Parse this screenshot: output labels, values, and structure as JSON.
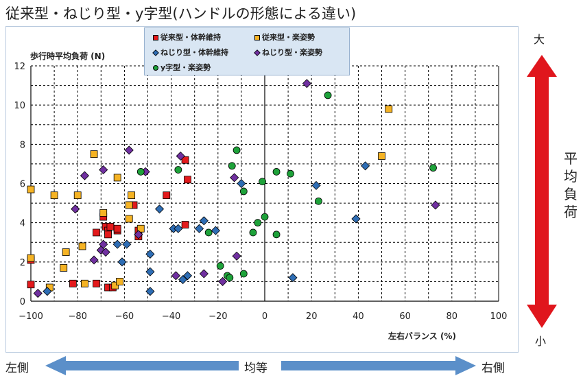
{
  "page_title": "従来型・ねじり型・y字型(ハンドルの形態による違い)",
  "right_scale": {
    "top": "大",
    "bottom": "小",
    "label": "平均負荷"
  },
  "bottom_scale": {
    "left": "左側",
    "middle": "均等",
    "right": "右側"
  },
  "colors": {
    "red": "#e31a1c",
    "orange": "#f5b324",
    "blue": "#2e6db4",
    "purple": "#7030a0",
    "green": "#1ea23a",
    "arrow_red": "#e0161d",
    "arrow_blue": "#5b8fc9"
  },
  "chart_data": {
    "type": "scatter",
    "ylabel": "歩行時平均負荷 (N)",
    "xlabel": "左右バランス (%)",
    "xlim": [
      -100,
      100
    ],
    "ylim": [
      0,
      12
    ],
    "xticks": [
      "−100",
      "−80",
      "−60",
      "−40",
      "−20",
      "0",
      "20",
      "40",
      "60",
      "80",
      "100"
    ],
    "yticks": [
      "0",
      "2",
      "4",
      "6",
      "8",
      "10",
      "12"
    ],
    "grid": true,
    "legend_position": "top-center",
    "series": [
      {
        "name": "従来型・体幹維持",
        "marker": "square",
        "color": "#e31a1c",
        "points": [
          [
            -100,
            2.1
          ],
          [
            -100,
            0.85
          ],
          [
            -82,
            0.9
          ],
          [
            -72,
            0.9
          ],
          [
            -72,
            3.5
          ],
          [
            -69,
            4.3
          ],
          [
            -68,
            3.8
          ],
          [
            -67,
            3.6
          ],
          [
            -67,
            3.4
          ],
          [
            -67,
            0.7
          ],
          [
            -66,
            3.8
          ],
          [
            -65,
            0.7
          ],
          [
            -63,
            3.6
          ],
          [
            -63,
            3.7
          ],
          [
            -56,
            4.9
          ],
          [
            -54,
            3.3
          ],
          [
            -54,
            3.6
          ],
          [
            -42,
            5.4
          ],
          [
            -34,
            3.9
          ],
          [
            -34,
            7.2
          ],
          [
            -33,
            6.2
          ]
        ]
      },
      {
        "name": "従来型・楽姿勢",
        "marker": "square",
        "color": "#f5b324",
        "points": [
          [
            -100,
            5.7
          ],
          [
            -100,
            2.2
          ],
          [
            -92,
            0.7
          ],
          [
            -90,
            5.4
          ],
          [
            -86,
            1.7
          ],
          [
            -85,
            2.5
          ],
          [
            -80,
            5.4
          ],
          [
            -78,
            2.8
          ],
          [
            -77,
            0.9
          ],
          [
            -73,
            7.5
          ],
          [
            -69,
            4.5
          ],
          [
            -64,
            0.8
          ],
          [
            -63,
            6.3
          ],
          [
            -62,
            1.0
          ],
          [
            -58,
            4.2
          ],
          [
            -58,
            4.9
          ],
          [
            -57,
            5.4
          ],
          [
            -53,
            3.7
          ],
          [
            50,
            7.4
          ],
          [
            53,
            9.8
          ]
        ]
      },
      {
        "name": "ねじり型・体幹維持",
        "marker": "diamond",
        "color": "#2e6db4",
        "points": [
          [
            -93,
            0.5
          ],
          [
            -63,
            2.9
          ],
          [
            -61,
            2.0
          ],
          [
            -59,
            2.9
          ],
          [
            -49,
            2.4
          ],
          [
            -49,
            1.5
          ],
          [
            -49,
            0.5
          ],
          [
            -45,
            4.7
          ],
          [
            -39,
            3.7
          ],
          [
            -37,
            3.7
          ],
          [
            -35,
            1.1
          ],
          [
            -33,
            1.3
          ],
          [
            -28,
            3.7
          ],
          [
            -26,
            4.1
          ],
          [
            -21,
            3.6
          ],
          [
            -10,
            6.0
          ],
          [
            12,
            1.2
          ],
          [
            22,
            5.9
          ],
          [
            39,
            4.2
          ],
          [
            43,
            6.9
          ]
        ]
      },
      {
        "name": "ねじり型・楽姿勢",
        "marker": "diamond",
        "color": "#7030a0",
        "points": [
          [
            -97,
            0.4
          ],
          [
            -81,
            4.7
          ],
          [
            -77,
            6.4
          ],
          [
            -73,
            2.1
          ],
          [
            -70,
            2.6
          ],
          [
            -69,
            6.7
          ],
          [
            -69,
            2.9
          ],
          [
            -68,
            2.5
          ],
          [
            -58,
            7.7
          ],
          [
            -54,
            3.4
          ],
          [
            -51,
            6.6
          ],
          [
            -38,
            1.3
          ],
          [
            -36,
            7.4
          ],
          [
            -26,
            1.4
          ],
          [
            -18,
            1.0
          ],
          [
            -13,
            6.3
          ],
          [
            -12,
            2.3
          ],
          [
            18,
            11.1
          ],
          [
            73,
            4.9
          ]
        ]
      },
      {
        "name": "y字型・楽姿勢",
        "marker": "circle",
        "color": "#1ea23a",
        "points": [
          [
            -53,
            6.6
          ],
          [
            -37,
            6.7
          ],
          [
            -24,
            3.5
          ],
          [
            -19,
            1.8
          ],
          [
            -16,
            1.3
          ],
          [
            -15,
            1.2
          ],
          [
            -14,
            6.9
          ],
          [
            -12,
            7.7
          ],
          [
            -9,
            5.6
          ],
          [
            -9,
            1.4
          ],
          [
            -5,
            3.5
          ],
          [
            -3,
            4.0
          ],
          [
            -1,
            6.1
          ],
          [
            0,
            4.3
          ],
          [
            5,
            3.4
          ],
          [
            5,
            6.6
          ],
          [
            11,
            6.5
          ],
          [
            23,
            5.1
          ],
          [
            27,
            10.5
          ],
          [
            72,
            6.8
          ]
        ]
      }
    ]
  }
}
